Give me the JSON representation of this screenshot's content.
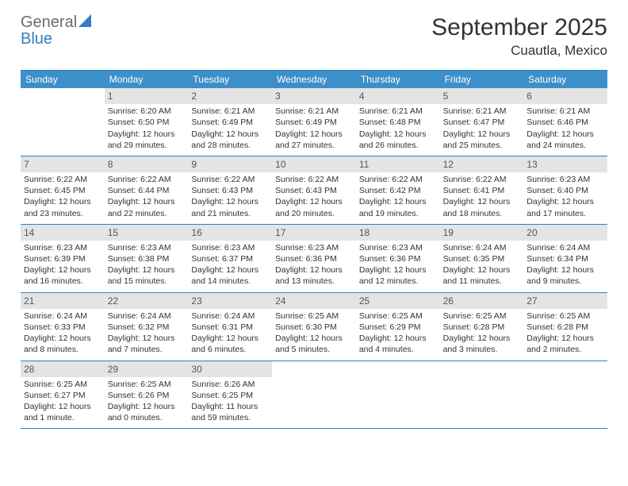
{
  "logo": {
    "general": "General",
    "blue": "Blue"
  },
  "title": {
    "month": "September 2025",
    "location": "Cuautla, Mexico"
  },
  "colors": {
    "header_bar": "#3d8fc9",
    "rule": "#2f7fc2",
    "daynum_bg": "#e4e4e4",
    "text": "#333333"
  },
  "weekdays": [
    "Sunday",
    "Monday",
    "Tuesday",
    "Wednesday",
    "Thursday",
    "Friday",
    "Saturday"
  ],
  "weeks": [
    [
      {
        "day": "",
        "sunrise": "",
        "sunset": "",
        "daylight": ""
      },
      {
        "day": "1",
        "sunrise": "Sunrise: 6:20 AM",
        "sunset": "Sunset: 6:50 PM",
        "daylight": "Daylight: 12 hours and 29 minutes."
      },
      {
        "day": "2",
        "sunrise": "Sunrise: 6:21 AM",
        "sunset": "Sunset: 6:49 PM",
        "daylight": "Daylight: 12 hours and 28 minutes."
      },
      {
        "day": "3",
        "sunrise": "Sunrise: 6:21 AM",
        "sunset": "Sunset: 6:49 PM",
        "daylight": "Daylight: 12 hours and 27 minutes."
      },
      {
        "day": "4",
        "sunrise": "Sunrise: 6:21 AM",
        "sunset": "Sunset: 6:48 PM",
        "daylight": "Daylight: 12 hours and 26 minutes."
      },
      {
        "day": "5",
        "sunrise": "Sunrise: 6:21 AM",
        "sunset": "Sunset: 6:47 PM",
        "daylight": "Daylight: 12 hours and 25 minutes."
      },
      {
        "day": "6",
        "sunrise": "Sunrise: 6:21 AM",
        "sunset": "Sunset: 6:46 PM",
        "daylight": "Daylight: 12 hours and 24 minutes."
      }
    ],
    [
      {
        "day": "7",
        "sunrise": "Sunrise: 6:22 AM",
        "sunset": "Sunset: 6:45 PM",
        "daylight": "Daylight: 12 hours and 23 minutes."
      },
      {
        "day": "8",
        "sunrise": "Sunrise: 6:22 AM",
        "sunset": "Sunset: 6:44 PM",
        "daylight": "Daylight: 12 hours and 22 minutes."
      },
      {
        "day": "9",
        "sunrise": "Sunrise: 6:22 AM",
        "sunset": "Sunset: 6:43 PM",
        "daylight": "Daylight: 12 hours and 21 minutes."
      },
      {
        "day": "10",
        "sunrise": "Sunrise: 6:22 AM",
        "sunset": "Sunset: 6:43 PM",
        "daylight": "Daylight: 12 hours and 20 minutes."
      },
      {
        "day": "11",
        "sunrise": "Sunrise: 6:22 AM",
        "sunset": "Sunset: 6:42 PM",
        "daylight": "Daylight: 12 hours and 19 minutes."
      },
      {
        "day": "12",
        "sunrise": "Sunrise: 6:22 AM",
        "sunset": "Sunset: 6:41 PM",
        "daylight": "Daylight: 12 hours and 18 minutes."
      },
      {
        "day": "13",
        "sunrise": "Sunrise: 6:23 AM",
        "sunset": "Sunset: 6:40 PM",
        "daylight": "Daylight: 12 hours and 17 minutes."
      }
    ],
    [
      {
        "day": "14",
        "sunrise": "Sunrise: 6:23 AM",
        "sunset": "Sunset: 6:39 PM",
        "daylight": "Daylight: 12 hours and 16 minutes."
      },
      {
        "day": "15",
        "sunrise": "Sunrise: 6:23 AM",
        "sunset": "Sunset: 6:38 PM",
        "daylight": "Daylight: 12 hours and 15 minutes."
      },
      {
        "day": "16",
        "sunrise": "Sunrise: 6:23 AM",
        "sunset": "Sunset: 6:37 PM",
        "daylight": "Daylight: 12 hours and 14 minutes."
      },
      {
        "day": "17",
        "sunrise": "Sunrise: 6:23 AM",
        "sunset": "Sunset: 6:36 PM",
        "daylight": "Daylight: 12 hours and 13 minutes."
      },
      {
        "day": "18",
        "sunrise": "Sunrise: 6:23 AM",
        "sunset": "Sunset: 6:36 PM",
        "daylight": "Daylight: 12 hours and 12 minutes."
      },
      {
        "day": "19",
        "sunrise": "Sunrise: 6:24 AM",
        "sunset": "Sunset: 6:35 PM",
        "daylight": "Daylight: 12 hours and 11 minutes."
      },
      {
        "day": "20",
        "sunrise": "Sunrise: 6:24 AM",
        "sunset": "Sunset: 6:34 PM",
        "daylight": "Daylight: 12 hours and 9 minutes."
      }
    ],
    [
      {
        "day": "21",
        "sunrise": "Sunrise: 6:24 AM",
        "sunset": "Sunset: 6:33 PM",
        "daylight": "Daylight: 12 hours and 8 minutes."
      },
      {
        "day": "22",
        "sunrise": "Sunrise: 6:24 AM",
        "sunset": "Sunset: 6:32 PM",
        "daylight": "Daylight: 12 hours and 7 minutes."
      },
      {
        "day": "23",
        "sunrise": "Sunrise: 6:24 AM",
        "sunset": "Sunset: 6:31 PM",
        "daylight": "Daylight: 12 hours and 6 minutes."
      },
      {
        "day": "24",
        "sunrise": "Sunrise: 6:25 AM",
        "sunset": "Sunset: 6:30 PM",
        "daylight": "Daylight: 12 hours and 5 minutes."
      },
      {
        "day": "25",
        "sunrise": "Sunrise: 6:25 AM",
        "sunset": "Sunset: 6:29 PM",
        "daylight": "Daylight: 12 hours and 4 minutes."
      },
      {
        "day": "26",
        "sunrise": "Sunrise: 6:25 AM",
        "sunset": "Sunset: 6:28 PM",
        "daylight": "Daylight: 12 hours and 3 minutes."
      },
      {
        "day": "27",
        "sunrise": "Sunrise: 6:25 AM",
        "sunset": "Sunset: 6:28 PM",
        "daylight": "Daylight: 12 hours and 2 minutes."
      }
    ],
    [
      {
        "day": "28",
        "sunrise": "Sunrise: 6:25 AM",
        "sunset": "Sunset: 6:27 PM",
        "daylight": "Daylight: 12 hours and 1 minute."
      },
      {
        "day": "29",
        "sunrise": "Sunrise: 6:25 AM",
        "sunset": "Sunset: 6:26 PM",
        "daylight": "Daylight: 12 hours and 0 minutes."
      },
      {
        "day": "30",
        "sunrise": "Sunrise: 6:26 AM",
        "sunset": "Sunset: 6:25 PM",
        "daylight": "Daylight: 11 hours and 59 minutes."
      },
      {
        "day": "",
        "sunrise": "",
        "sunset": "",
        "daylight": ""
      },
      {
        "day": "",
        "sunrise": "",
        "sunset": "",
        "daylight": ""
      },
      {
        "day": "",
        "sunrise": "",
        "sunset": "",
        "daylight": ""
      },
      {
        "day": "",
        "sunrise": "",
        "sunset": "",
        "daylight": ""
      }
    ]
  ]
}
